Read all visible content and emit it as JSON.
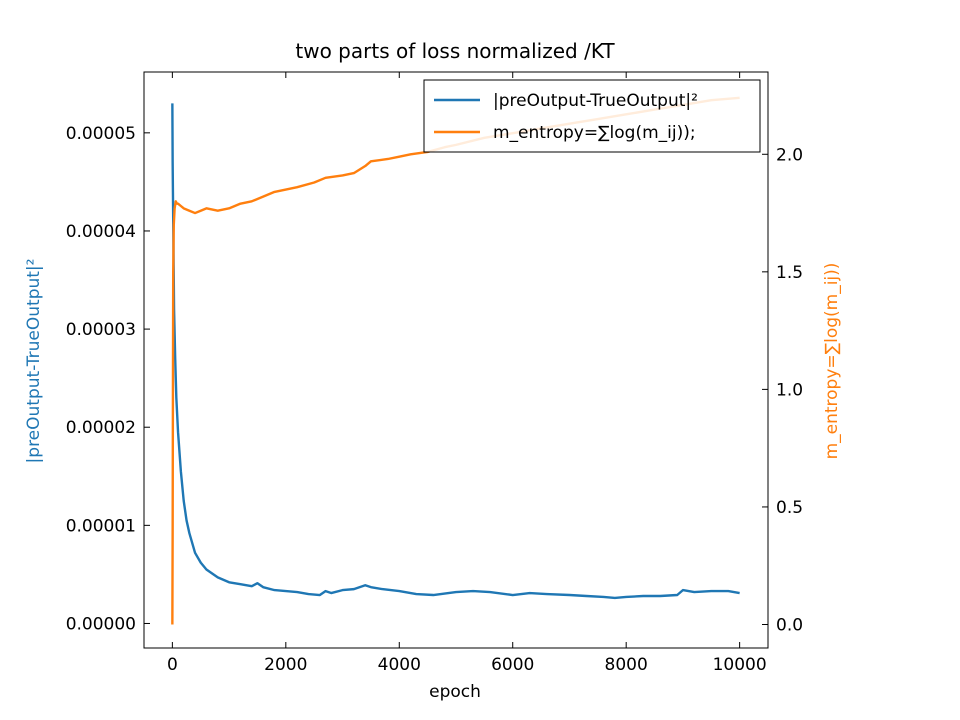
{
  "chart_data": {
    "type": "line",
    "title": "two parts of loss normalized /KT",
    "xlabel": "epoch",
    "ylabel_left": "|preOutput-TrueOutput|²",
    "ylabel_right": "m_entropy=∑log(m_ij))",
    "xlim": [
      -500,
      10500
    ],
    "ylim_left": [
      -2.5e-06,
      5.62e-05
    ],
    "ylim_right": [
      -0.1,
      2.35
    ],
    "x_ticks": [
      0,
      2000,
      4000,
      6000,
      8000,
      10000
    ],
    "x_tick_labels": [
      "0",
      "2000",
      "4000",
      "6000",
      "8000",
      "10000"
    ],
    "y_ticks_left": [
      0,
      1e-05,
      2e-05,
      3e-05,
      4e-05,
      5e-05
    ],
    "y_tick_labels_left": [
      "0.00000",
      "0.00001",
      "0.00002",
      "0.00003",
      "0.00004",
      "0.00005"
    ],
    "y_ticks_right": [
      0,
      0.5,
      1.0,
      1.5,
      2.0
    ],
    "y_tick_labels_right": [
      "0.0",
      "0.5",
      "1.0",
      "1.5",
      "2.0"
    ],
    "grid": false,
    "legend_position": "top-right",
    "colors": {
      "left_series": "#1f77b4",
      "right_series": "#ff7f0e"
    },
    "series": [
      {
        "name": "|preOutput-TrueOutput|²",
        "axis": "left",
        "color": "#1f77b4",
        "x": [
          0,
          5,
          10,
          20,
          30,
          50,
          70,
          100,
          150,
          200,
          250,
          300,
          400,
          500,
          600,
          800,
          1000,
          1200,
          1400,
          1500,
          1600,
          1800,
          2000,
          2200,
          2400,
          2600,
          2700,
          2800,
          3000,
          3200,
          3400,
          3500,
          3700,
          4000,
          4300,
          4600,
          5000,
          5300,
          5600,
          6000,
          6300,
          6600,
          7000,
          7300,
          7600,
          7800,
          8000,
          8300,
          8600,
          8900,
          9000,
          9200,
          9500,
          9800,
          10000
        ],
        "y": [
          5.3e-05,
          4.7e-05,
          4.4e-05,
          3.8e-05,
          3.2e-05,
          2.7e-05,
          2.3e-05,
          1.95e-05,
          1.55e-05,
          1.25e-05,
          1.05e-05,
          9.2e-06,
          7.2e-06,
          6.2e-06,
          5.5e-06,
          4.7e-06,
          4.2e-06,
          4e-06,
          3.8e-06,
          4.1e-06,
          3.7e-06,
          3.4e-06,
          3.3e-06,
          3.2e-06,
          3e-06,
          2.9e-06,
          3.3e-06,
          3.1e-06,
          3.4e-06,
          3.5e-06,
          3.9e-06,
          3.7e-06,
          3.5e-06,
          3.3e-06,
          3e-06,
          2.9e-06,
          3.2e-06,
          3.3e-06,
          3.2e-06,
          2.9e-06,
          3.1e-06,
          3e-06,
          2.9e-06,
          2.8e-06,
          2.7e-06,
          2.6e-06,
          2.7e-06,
          2.8e-06,
          2.8e-06,
          2.9e-06,
          3.4e-06,
          3.2e-06,
          3.3e-06,
          3.3e-06,
          3.1e-06
        ]
      },
      {
        "name": "m_entropy=∑log(m_ij));",
        "axis": "right",
        "color": "#ff7f0e",
        "x": [
          0,
          5,
          10,
          15,
          25,
          40,
          60,
          80,
          100,
          150,
          200,
          300,
          400,
          500,
          600,
          800,
          1000,
          1200,
          1400,
          1600,
          1800,
          2000,
          2200,
          2500,
          2700,
          3000,
          3200,
          3400,
          3500,
          3800,
          4000,
          4200,
          4500,
          4800,
          5000,
          5500,
          6000,
          6500,
          7000,
          7500,
          8000,
          8500,
          9000,
          9500,
          10000
        ],
        "y": [
          0.0,
          0.4,
          1.0,
          1.5,
          1.7,
          1.77,
          1.8,
          1.79,
          1.79,
          1.78,
          1.77,
          1.76,
          1.75,
          1.76,
          1.77,
          1.76,
          1.77,
          1.79,
          1.8,
          1.82,
          1.84,
          1.85,
          1.86,
          1.88,
          1.9,
          1.91,
          1.92,
          1.95,
          1.97,
          1.98,
          1.99,
          2.0,
          2.01,
          2.03,
          2.04,
          2.07,
          2.09,
          2.11,
          2.13,
          2.15,
          2.17,
          2.19,
          2.21,
          2.23,
          2.24
        ]
      }
    ]
  }
}
